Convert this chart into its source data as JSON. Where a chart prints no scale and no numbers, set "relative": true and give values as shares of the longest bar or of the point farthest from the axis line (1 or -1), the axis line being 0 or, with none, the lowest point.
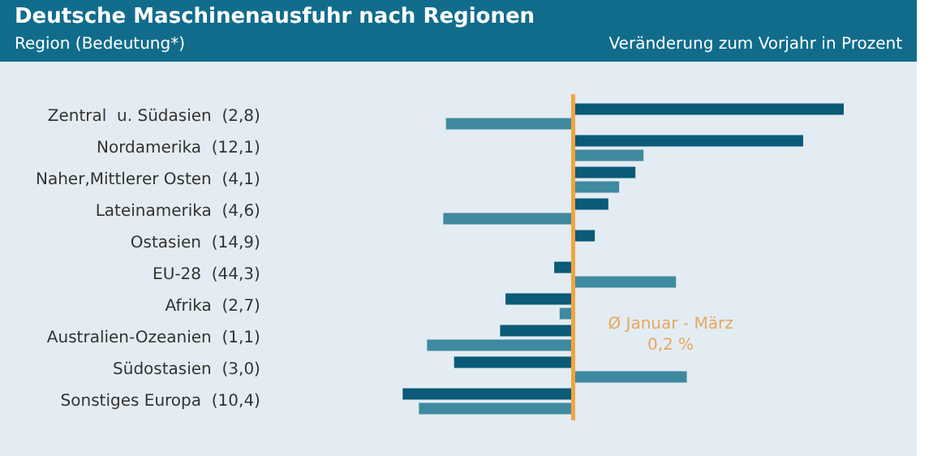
{
  "chart_data": {
    "type": "bar",
    "orientation": "horizontal",
    "relative": true,
    "title": "Deutsche Maschinenausfuhr nach Regionen",
    "ylabel": "Region (Bedeutung*)",
    "xlabel": "Veränderung  zum Vorjahr in Prozent",
    "categories": [
      "Zentral  u. Südasien  (2,8)",
      "Nordamerika  (12,1)",
      "Naher,Mittlerer Osten  (4,1)",
      "Lateinamerika  (4,6)",
      "Ostasien  (14,9)",
      "EU-28  (44,3)",
      "Afrika  (2,7)",
      "Australien-Ozeanien  (1,1)",
      "Südostasien  (3,0)",
      "Sonstiges Europa  (10,4)"
    ],
    "series": [
      {
        "color": "#0a5a78",
        "values": [
          1,
          0.85,
          0.23,
          0.13,
          0.08,
          -0.07,
          -0.25,
          -0.27,
          -0.44,
          -0.63
        ]
      },
      {
        "color": "#3f8aa0",
        "values": [
          -0.47,
          0.26,
          0.17,
          -0.48,
          null,
          0.38,
          -0.05,
          -0.54,
          0.42,
          -0.57
        ]
      }
    ],
    "ref_lines": [
      {
        "axis": "x",
        "value": 0,
        "color": "#f0a540"
      }
    ],
    "annotations": [
      "Ø Januar - März\n0,2 %"
    ],
    "legend": false,
    "tick_labels": "y"
  }
}
